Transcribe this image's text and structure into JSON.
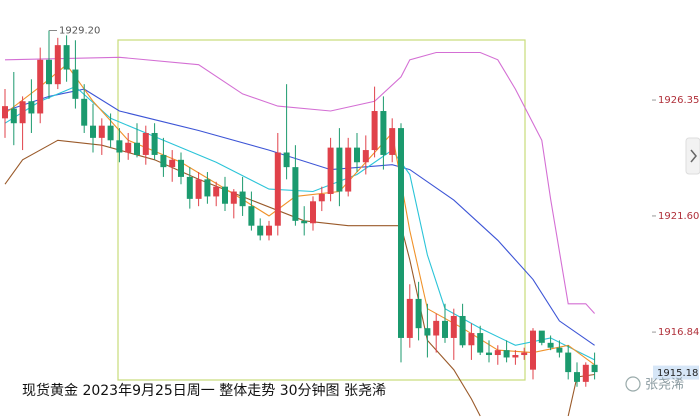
{
  "chart_data": {
    "type": "candlestick",
    "caption": "现货黄金 2023年9月25日周一 整体走势 30分钟图 张尧浠",
    "watermark": "张尧浠",
    "ylim": [
      1913.36,
      1930.45
    ],
    "yticks": [
      1926.35,
      {
        "value": 1921.6,
        "label": "1921.60"
      },
      1916.84
    ],
    "last_price": 1915.18,
    "annotation": {
      "index": 5,
      "value": 1929.2,
      "label": "1929.20"
    },
    "up_color": "#e0414a",
    "down_color": "#1b9a6e",
    "open": [
      1925.6,
      1926.0,
      1925.4,
      1926.3,
      1925.8,
      1928.0,
      1927.0,
      1928.6,
      1927.6,
      1926.4,
      1925.3,
      1924.8,
      1925.3,
      1924.7,
      1924.2,
      1924.6,
      1924.1,
      1925.0,
      1924.1,
      1923.6,
      1923.9,
      1923.2,
      1922.3,
      1923.1,
      1922.4,
      1922.8,
      1922.1,
      1922.6,
      1922.0,
      1921.2,
      1920.8,
      1921.2,
      1924.2,
      1923.6,
      1921.4,
      1921.3,
      1922.2,
      1922.5,
      1924.4,
      1922.6,
      1924.4,
      1923.8,
      1924.3,
      1925.9,
      1924.1,
      1925.2,
      1916.6,
      1918.2,
      1917.0,
      1916.7,
      1917.3,
      1916.6,
      1917.5,
      1916.3,
      1916.8,
      1916.0,
      1915.9,
      1916.1,
      1915.8,
      1915.9,
      1915.3,
      1916.9,
      1916.4,
      1916.2,
      1916.0,
      1915.2,
      1914.8,
      1915.5
    ],
    "high": [
      1926.8,
      1927.5,
      1926.5,
      1927.2,
      1928.5,
      1929.2,
      1928.9,
      1929.0,
      1928.8,
      1927.0,
      1926.2,
      1925.6,
      1925.8,
      1925.2,
      1925.0,
      1925.4,
      1925.3,
      1925.4,
      1924.8,
      1924.3,
      1924.2,
      1923.6,
      1923.4,
      1923.4,
      1923.0,
      1923.2,
      1922.7,
      1923.2,
      1922.6,
      1921.5,
      1921.4,
      1925.0,
      1927.0,
      1924.5,
      1922.0,
      1922.4,
      1922.8,
      1924.8,
      1925.2,
      1924.8,
      1925.0,
      1924.9,
      1926.9,
      1926.5,
      1925.6,
      1925.4,
      1918.8,
      1918.9,
      1918.0,
      1917.6,
      1918.0,
      1917.8,
      1918.0,
      1917.2,
      1917.1,
      1916.5,
      1916.3,
      1916.5,
      1916.1,
      1916.2,
      1917.0,
      1916.8,
      1916.7,
      1916.5,
      1916.3,
      1915.6,
      1915.6,
      1916.0
    ],
    "low": [
      1924.8,
      1924.5,
      1924.3,
      1925.0,
      1925.4,
      1926.4,
      1926.8,
      1927.1,
      1926.0,
      1925.0,
      1924.2,
      1924.1,
      1924.4,
      1923.8,
      1923.9,
      1924.0,
      1923.7,
      1923.9,
      1923.2,
      1923.0,
      1922.9,
      1921.9,
      1922.0,
      1922.1,
      1922.0,
      1921.8,
      1921.5,
      1921.6,
      1921.0,
      1920.6,
      1920.6,
      1920.8,
      1923.1,
      1921.2,
      1920.8,
      1921.0,
      1921.8,
      1922.2,
      1922.0,
      1922.4,
      1923.4,
      1923.3,
      1924.0,
      1923.5,
      1923.8,
      1915.6,
      1916.2,
      1916.5,
      1915.8,
      1916.0,
      1916.4,
      1915.7,
      1916.2,
      1915.7,
      1915.9,
      1915.6,
      1915.5,
      1915.6,
      1915.5,
      1915.7,
      1914.9,
      1916.3,
      1916.1,
      1915.8,
      1914.9,
      1914.6,
      1914.6,
      1914.9
    ],
    "close": [
      1926.1,
      1925.4,
      1926.3,
      1925.8,
      1928.0,
      1927.0,
      1928.6,
      1927.6,
      1926.4,
      1925.3,
      1924.8,
      1925.3,
      1924.7,
      1924.2,
      1924.6,
      1924.1,
      1925.0,
      1924.1,
      1923.6,
      1923.9,
      1923.2,
      1922.3,
      1923.1,
      1922.4,
      1922.8,
      1922.1,
      1922.6,
      1922.0,
      1921.2,
      1920.8,
      1921.2,
      1924.2,
      1923.6,
      1921.4,
      1921.3,
      1922.2,
      1922.5,
      1924.4,
      1922.6,
      1924.4,
      1923.8,
      1924.3,
      1925.9,
      1924.1,
      1925.2,
      1916.6,
      1918.2,
      1917.0,
      1916.7,
      1917.3,
      1916.6,
      1917.5,
      1916.3,
      1916.8,
      1916.0,
      1915.9,
      1916.1,
      1915.8,
      1915.9,
      1916.0,
      1916.9,
      1916.4,
      1916.2,
      1916.0,
      1915.2,
      1914.8,
      1915.5,
      1915.2
    ],
    "lines": [
      {
        "color": "#d46fd4",
        "x": [
          0,
          13,
          22,
          27,
          31,
          37,
          42,
          45,
          46,
          49,
          54,
          56,
          58,
          61,
          62,
          64,
          66,
          67
        ],
        "values": [
          1928.0,
          1928.1,
          1927.8,
          1926.6,
          1926.1,
          1925.9,
          1926.3,
          1927.3,
          1928.0,
          1928.3,
          1928.3,
          1928.0,
          1926.8,
          1924.7,
          1922.3,
          1918.0,
          1918.0,
          1917.6
        ]
      },
      {
        "color": "#9a5a2a",
        "x": [
          0,
          2,
          5,
          6,
          11,
          17,
          22,
          28,
          34,
          39,
          45,
          46,
          48,
          51,
          53,
          54,
          59,
          64,
          65,
          67
        ],
        "values": [
          1922.9,
          1923.9,
          1924.5,
          1924.7,
          1924.5,
          1923.9,
          1923.1,
          1922.25,
          1921.4,
          1921.2,
          1921.2,
          1919.8,
          1916.5,
          1915.3,
          1914.1,
          1913.4,
          null,
          1913.4,
          1915.0,
          1915.1
        ]
      },
      {
        "color": "#3d55d6",
        "x": [
          0,
          5,
          9,
          13,
          22,
          30,
          37,
          44,
          46,
          51,
          56,
          60,
          63,
          67
        ],
        "values": [
          1925.9,
          1926.5,
          1926.8,
          1925.9,
          1925.1,
          1924.3,
          1923.5,
          1923.7,
          1923.5,
          1922.25,
          1920.6,
          1919.0,
          1917.3,
          1916.3
        ]
      },
      {
        "color": "#2bc4d8",
        "x": [
          0,
          4,
          8,
          12,
          18,
          24,
          30,
          35,
          40,
          44,
          46,
          48,
          50,
          54,
          58,
          62,
          67
        ],
        "values": [
          1925.4,
          1926.3,
          1926.9,
          1925.6,
          1924.7,
          1923.8,
          1922.7,
          1922.6,
          1923.3,
          1924.3,
          1923.3,
          1920.0,
          1917.8,
          1917.0,
          1916.3,
          1916.6,
          1915.7
        ]
      },
      {
        "color": "#f0922a",
        "x": [
          0,
          4,
          7,
          10,
          14,
          20,
          26,
          30,
          33,
          38,
          42,
          44,
          46,
          48,
          52,
          56,
          60,
          64,
          67
        ],
        "values": [
          1925.8,
          1926.9,
          1927.8,
          1926.3,
          1924.7,
          1923.8,
          1922.5,
          1921.6,
          1922.4,
          1922.6,
          1924.2,
          1925.0,
          1921.0,
          1917.8,
          1917.0,
          1916.1,
          1916.0,
          1916.3,
          1915.5
        ]
      }
    ]
  }
}
